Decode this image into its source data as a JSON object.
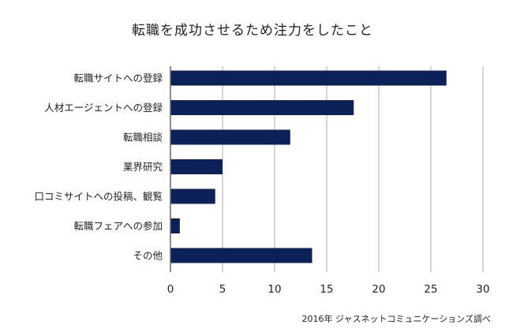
{
  "chart_data": {
    "type": "bar",
    "orientation": "horizontal",
    "title": "転職を成功させるため注力をしたこと",
    "categories": [
      "転職サイトへの登録",
      "人材エージェントへの登録",
      "転職相談",
      "業界研究",
      "口コミサイトへの投稿、観覧",
      "転職フェアへの参加",
      "その他"
    ],
    "values": [
      26.5,
      17.6,
      11.5,
      5.0,
      4.3,
      0.9,
      13.6
    ],
    "xlim": [
      0,
      30
    ],
    "xticks": [
      "0",
      "5",
      "10",
      "15",
      "20",
      "25",
      "30"
    ],
    "grid": true,
    "bar_color": "#0b2157",
    "source": "2016年 ジャスネットコミュニケーションズ調べ"
  }
}
